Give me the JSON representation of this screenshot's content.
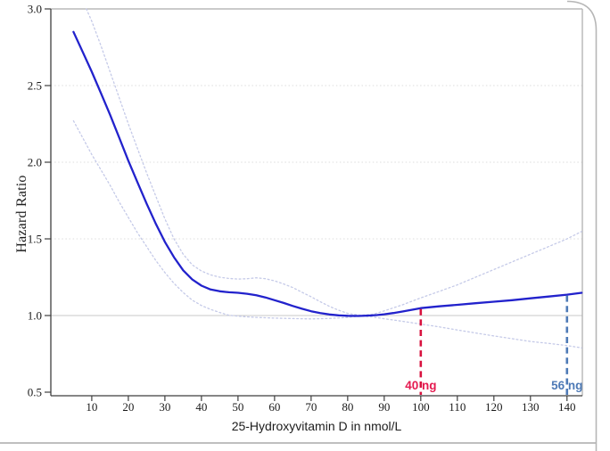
{
  "frame": {
    "card_border_color": "#b6b6b6",
    "bottom_rule_color": "#b6b6b6",
    "plot_wall_color": "#ababab",
    "axis_color": "#3f3f3f",
    "tick_text_color": "#1a1a1a",
    "grid_color": "#dcdcdc",
    "grid_ref_color": "#c9c9c9"
  },
  "chart_data": {
    "type": "line",
    "title": "",
    "xlabel": "25-Hydroxyvitamin D in nmol/L",
    "ylabel": "Hazard Ratio",
    "xlim": [
      -1.2,
      144.2
    ],
    "ylim": [
      0.5,
      3.0
    ],
    "xticks": [
      10,
      20,
      30,
      40,
      50,
      60,
      70,
      80,
      90,
      100,
      110,
      120,
      130,
      140
    ],
    "yticks": [
      0.5,
      1.0,
      1.5,
      2.0,
      2.5,
      3.0
    ],
    "grid_y": [
      1.0,
      1.5,
      2.0,
      2.5
    ],
    "grid_on": true,
    "legend": "none",
    "series": [
      {
        "name": "hazard-ratio",
        "style": "solid",
        "color": "#2222cc",
        "width": 2.3,
        "points": [
          [
            5,
            2.85
          ],
          [
            7.5,
            2.72
          ],
          [
            10,
            2.59
          ],
          [
            12.5,
            2.45
          ],
          [
            15,
            2.31
          ],
          [
            17.5,
            2.16
          ],
          [
            20,
            2.01
          ],
          [
            22.5,
            1.87
          ],
          [
            25,
            1.73
          ],
          [
            27.5,
            1.6
          ],
          [
            30,
            1.48
          ],
          [
            32.5,
            1.38
          ],
          [
            35,
            1.295
          ],
          [
            37.5,
            1.235
          ],
          [
            40,
            1.195
          ],
          [
            42.5,
            1.17
          ],
          [
            45,
            1.158
          ],
          [
            47.5,
            1.152
          ],
          [
            50,
            1.148
          ],
          [
            52.5,
            1.142
          ],
          [
            55,
            1.132
          ],
          [
            57.5,
            1.118
          ],
          [
            60,
            1.1
          ],
          [
            62.5,
            1.082
          ],
          [
            65,
            1.062
          ],
          [
            67.5,
            1.044
          ],
          [
            70,
            1.028
          ],
          [
            72.5,
            1.016
          ],
          [
            75,
            1.007
          ],
          [
            77.5,
            1.001
          ],
          [
            80,
            0.998
          ],
          [
            83,
            0.997
          ],
          [
            86,
            1.0
          ],
          [
            88,
            1.003
          ],
          [
            90,
            1.008
          ],
          [
            92.5,
            1.016
          ],
          [
            95,
            1.026
          ],
          [
            100,
            1.048
          ],
          [
            105,
            1.06
          ],
          [
            110,
            1.07
          ],
          [
            115,
            1.08
          ],
          [
            120,
            1.09
          ],
          [
            125,
            1.1
          ],
          [
            130,
            1.112
          ],
          [
            135,
            1.124
          ],
          [
            140,
            1.136
          ],
          [
            144,
            1.148
          ]
        ]
      },
      {
        "name": "upper-95ci",
        "style": "dotted",
        "color": "#c5cae8",
        "width": 1.3,
        "points": [
          [
            8.5,
            3.0
          ],
          [
            10,
            2.92
          ],
          [
            12.5,
            2.76
          ],
          [
            15,
            2.59
          ],
          [
            17.5,
            2.42
          ],
          [
            20,
            2.25
          ],
          [
            22.5,
            2.09
          ],
          [
            25,
            1.93
          ],
          [
            27.5,
            1.78
          ],
          [
            30,
            1.63
          ],
          [
            32.5,
            1.5
          ],
          [
            35,
            1.4
          ],
          [
            37.5,
            1.33
          ],
          [
            40,
            1.29
          ],
          [
            42.5,
            1.265
          ],
          [
            45,
            1.25
          ],
          [
            47.5,
            1.242
          ],
          [
            50,
            1.238
          ],
          [
            52.5,
            1.24
          ],
          [
            55,
            1.246
          ],
          [
            57.5,
            1.24
          ],
          [
            60,
            1.226
          ],
          [
            62.5,
            1.206
          ],
          [
            65,
            1.182
          ],
          [
            67.5,
            1.152
          ],
          [
            70,
            1.122
          ],
          [
            72.5,
            1.09
          ],
          [
            75,
            1.06
          ],
          [
            77.5,
            1.035
          ],
          [
            80,
            1.014
          ],
          [
            83.5,
            1.002
          ],
          [
            87,
            1.008
          ],
          [
            90,
            1.03
          ],
          [
            95,
            1.07
          ],
          [
            100,
            1.115
          ],
          [
            105,
            1.157
          ],
          [
            110,
            1.2
          ],
          [
            115,
            1.25
          ],
          [
            120,
            1.3
          ],
          [
            125,
            1.35
          ],
          [
            130,
            1.4
          ],
          [
            135,
            1.45
          ],
          [
            140,
            1.5
          ],
          [
            144,
            1.548
          ]
        ]
      },
      {
        "name": "lower-95ci",
        "style": "dotted",
        "color": "#c5cae8",
        "width": 1.3,
        "points": [
          [
            5,
            2.27
          ],
          [
            7.5,
            2.16
          ],
          [
            10,
            2.05
          ],
          [
            12.5,
            1.95
          ],
          [
            15,
            1.85
          ],
          [
            17.5,
            1.74
          ],
          [
            20,
            1.64
          ],
          [
            22.5,
            1.54
          ],
          [
            25,
            1.45
          ],
          [
            27.5,
            1.36
          ],
          [
            30,
            1.28
          ],
          [
            32.5,
            1.21
          ],
          [
            35,
            1.15
          ],
          [
            37.5,
            1.1
          ],
          [
            40,
            1.065
          ],
          [
            42.5,
            1.04
          ],
          [
            45,
            1.02
          ],
          [
            47.5,
            1.002
          ],
          [
            50,
            0.996
          ],
          [
            52.5,
            0.991
          ],
          [
            55,
            0.988
          ],
          [
            60,
            0.983
          ],
          [
            65,
            0.98
          ],
          [
            70,
            0.978
          ],
          [
            75,
            0.981
          ],
          [
            80,
            0.988
          ],
          [
            83.5,
            0.997
          ],
          [
            87,
            0.99
          ],
          [
            90,
            0.979
          ],
          [
            95,
            0.962
          ],
          [
            100,
            0.944
          ],
          [
            105,
            0.926
          ],
          [
            110,
            0.906
          ],
          [
            115,
            0.886
          ],
          [
            120,
            0.867
          ],
          [
            125,
            0.849
          ],
          [
            130,
            0.831
          ],
          [
            135,
            0.818
          ],
          [
            140,
            0.804
          ],
          [
            144,
            0.789
          ]
        ]
      }
    ],
    "annotations": [
      {
        "x": 100,
        "y_top": 1.042,
        "label": "40 ng",
        "line_color": "#d8123f",
        "text_color": "#e51a50"
      },
      {
        "x": 140,
        "y_top": 1.13,
        "label": "56 ng",
        "line_color": "#4e7ab6",
        "text_color": "#4e7ab6"
      }
    ]
  }
}
